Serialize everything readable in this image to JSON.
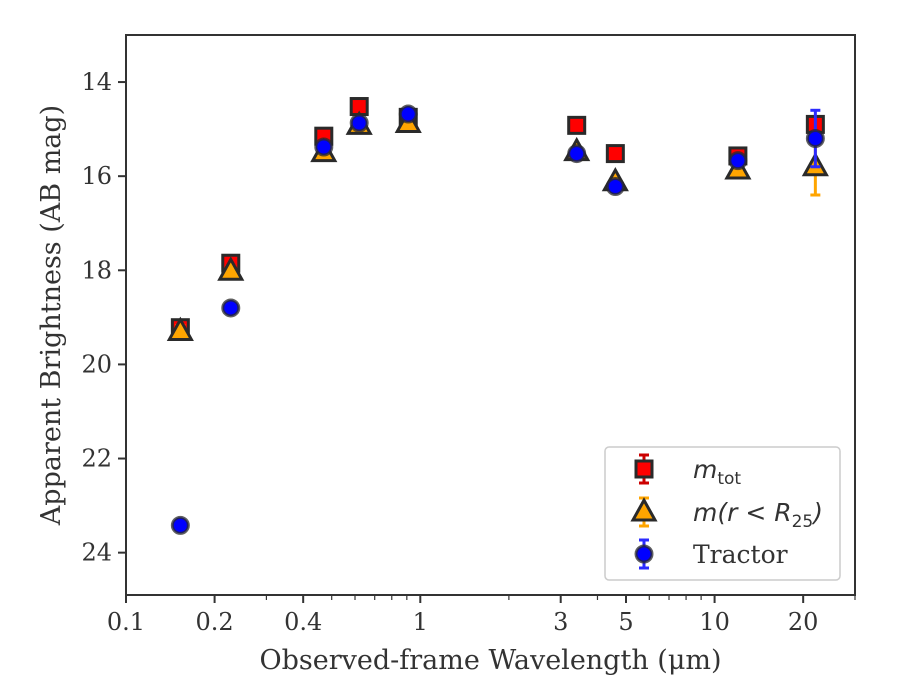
{
  "chart_data": {
    "type": "scatter",
    "xlabel": "Observed-frame Wavelength (μm)",
    "ylabel": "Apparent Brightness (AB mag)",
    "xscale": "log",
    "xlim": [
      0.1,
      30
    ],
    "ylim": [
      24.9,
      13.0
    ],
    "y_inverted": true,
    "grid": false,
    "legend_position": "bottom-right",
    "x_ticks": [
      {
        "value": 0.1,
        "label": "0.1"
      },
      {
        "value": 0.2,
        "label": "0.2"
      },
      {
        "value": 0.4,
        "label": "0.4"
      },
      {
        "value": 1,
        "label": "1"
      },
      {
        "value": 3,
        "label": "3"
      },
      {
        "value": 5,
        "label": "5"
      },
      {
        "value": 10,
        "label": "10"
      },
      {
        "value": 20,
        "label": "20"
      }
    ],
    "x_minor_ticks": [
      0.3,
      0.5,
      0.6,
      0.7,
      0.8,
      0.9,
      2,
      4,
      6,
      7,
      8,
      9,
      30
    ],
    "y_ticks": [
      {
        "value": 14,
        "label": "14"
      },
      {
        "value": 16,
        "label": "16"
      },
      {
        "value": 18,
        "label": "18"
      },
      {
        "value": 20,
        "label": "20"
      },
      {
        "value": 22,
        "label": "22"
      },
      {
        "value": 24,
        "label": "24"
      }
    ],
    "series": [
      {
        "name": "mtot",
        "legend_label": {
          "base": "m",
          "sub": "tot",
          "rest": ""
        },
        "marker": "square",
        "color": "#ff0000",
        "ecolor": "#cc0000",
        "points": [
          {
            "x": 0.153,
            "y": 19.22,
            "err": 0.12
          },
          {
            "x": 0.227,
            "y": 17.85,
            "err": 0.1
          },
          {
            "x": 0.47,
            "y": 15.15,
            "err": 0.06
          },
          {
            "x": 0.62,
            "y": 14.52,
            "err": 0.05
          },
          {
            "x": 0.91,
            "y": 14.75,
            "err": 0.05
          },
          {
            "x": 3.4,
            "y": 14.92,
            "err": 0.05
          },
          {
            "x": 4.6,
            "y": 15.52,
            "err": 0.05
          },
          {
            "x": 12.0,
            "y": 15.57,
            "err": 0.08
          },
          {
            "x": 22.0,
            "y": 14.9,
            "err": 0.1
          }
        ]
      },
      {
        "name": "m(r < R25)",
        "legend_label": {
          "base": "m(r < R",
          "sub": "25",
          "rest": ")"
        },
        "marker": "triangle",
        "color": "#ffa500",
        "ecolor": "#ffa500",
        "points": [
          {
            "x": 0.153,
            "y": 19.3,
            "err": 0.12
          },
          {
            "x": 0.227,
            "y": 18.02,
            "err": 0.1
          },
          {
            "x": 0.47,
            "y": 15.5,
            "err": 0.06
          },
          {
            "x": 0.62,
            "y": 14.92,
            "err": 0.05
          },
          {
            "x": 0.91,
            "y": 14.88,
            "err": 0.05
          },
          {
            "x": 3.4,
            "y": 15.48,
            "err": 0.05
          },
          {
            "x": 4.6,
            "y": 16.12,
            "err": 0.05
          },
          {
            "x": 12.0,
            "y": 15.87,
            "err": 0.1
          },
          {
            "x": 22.0,
            "y": 15.8,
            "err": 0.6
          }
        ]
      },
      {
        "name": "Tractor",
        "legend_label": {
          "base": "Tractor",
          "sub": "",
          "rest": ""
        },
        "marker": "circle",
        "color": "#0000ff",
        "ecolor": "#2b2bff",
        "points": [
          {
            "x": 0.153,
            "y": 23.42,
            "err": 0.05
          },
          {
            "x": 0.227,
            "y": 18.8,
            "err": 0.05
          },
          {
            "x": 0.47,
            "y": 15.38,
            "err": 0.05
          },
          {
            "x": 0.62,
            "y": 14.87,
            "err": 0.05
          },
          {
            "x": 0.91,
            "y": 14.68,
            "err": 0.05
          },
          {
            "x": 3.4,
            "y": 15.52,
            "err": 0.05
          },
          {
            "x": 4.6,
            "y": 16.22,
            "err": 0.05
          },
          {
            "x": 12.0,
            "y": 15.67,
            "err": 0.08
          },
          {
            "x": 22.0,
            "y": 15.2,
            "err": 0.6
          }
        ]
      }
    ]
  }
}
